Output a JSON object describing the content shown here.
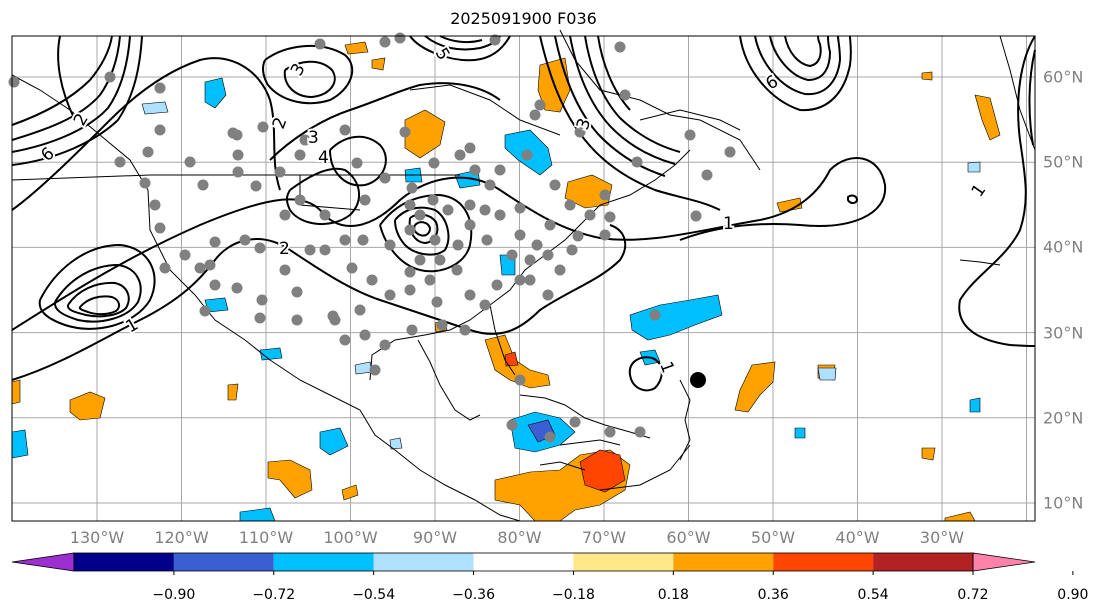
{
  "title": "2025091900 F036",
  "map": {
    "lon_labels": [
      "130°W",
      "120°W",
      "110°W",
      "100°W",
      "90°W",
      "80°W",
      "70°W",
      "60°W",
      "50°W",
      "40°W",
      "30°W"
    ],
    "lat_labels": [
      "60°N",
      "50°N",
      "40°N",
      "30°N",
      "20°N",
      "10°N"
    ],
    "contour_labels": [
      "1",
      "1",
      "1",
      "1",
      "2",
      "2",
      "2",
      "3",
      "3",
      "3",
      "4",
      "5",
      "6",
      "6"
    ]
  },
  "colorbar": {
    "ticks": [
      "−0.90",
      "−0.72",
      "−0.54",
      "−0.36",
      "−0.18",
      "0.18",
      "0.36",
      "0.54",
      "0.72",
      "0.90"
    ],
    "colors": [
      "#9c2fd0",
      "#00008b",
      "#3a5fd2",
      "#00bfff",
      "#aee0ff",
      "#ffffff",
      "#ffe888",
      "#ffa200",
      "#ff4500",
      "#b22222",
      "#ff82ab"
    ],
    "min_color": "#9c2fd0",
    "max_color": "#ff82ab"
  },
  "colors": {
    "gridline": "#a8a8a8",
    "contour": "#000000",
    "marker": "#808080",
    "axis_label": "#808080"
  }
}
